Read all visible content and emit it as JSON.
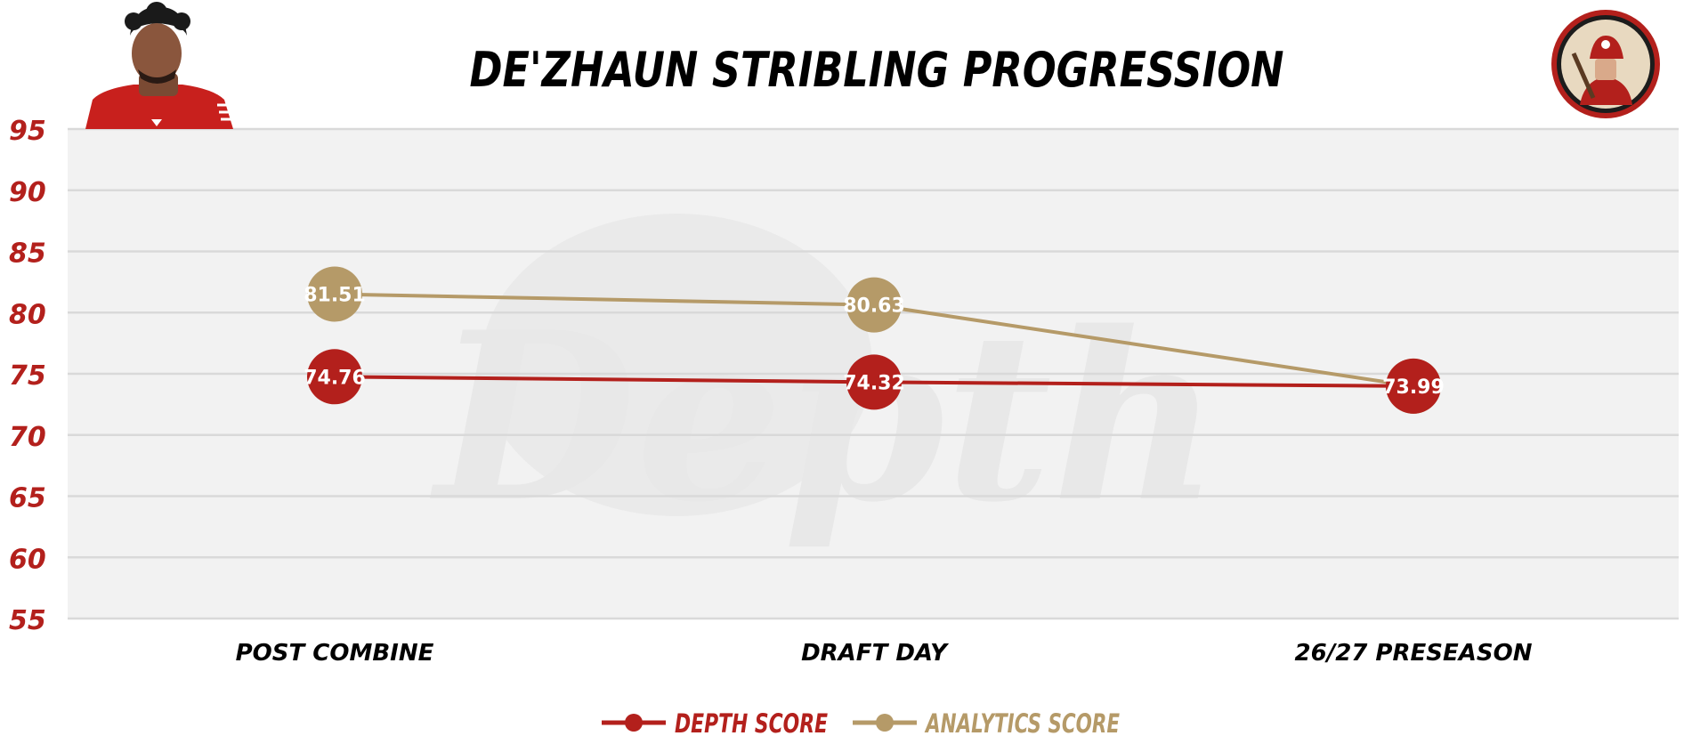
{
  "colors": {
    "depth": "#b3201c",
    "analytics": "#b59a68",
    "plot_bg": "#f2f2f2",
    "grid": "#d9d9d9",
    "ytick": "#b3201c",
    "title": "#000000"
  },
  "icons": {
    "player": "player-headshot-icon",
    "logo": "miner-logo-icon",
    "watermark": "depth-watermark-icon"
  },
  "watermark_text": "Depth",
  "chart_data": {
    "type": "line",
    "title": "DE'ZHAUN STRIBLING PROGRESSION",
    "xlabel": "",
    "ylabel": "",
    "categories": [
      "POST COMBINE",
      "DRAFT DAY",
      "26/27 PRESEASON"
    ],
    "ylim": [
      55,
      95
    ],
    "yticks": [
      95,
      90,
      85,
      80,
      75,
      70,
      65,
      60,
      55
    ],
    "grid": true,
    "legend_position": "bottom-center",
    "series": [
      {
        "name": "DEPTH SCORE",
        "values": [
          74.76,
          74.32,
          73.99
        ],
        "labels": [
          "74.76",
          "74.32",
          "73.99"
        ]
      },
      {
        "name": "ANALYTICS SCORE",
        "values": [
          81.51,
          80.63,
          73.99
        ],
        "labels": [
          "81.51",
          "80.63",
          "73.99"
        ]
      }
    ]
  }
}
